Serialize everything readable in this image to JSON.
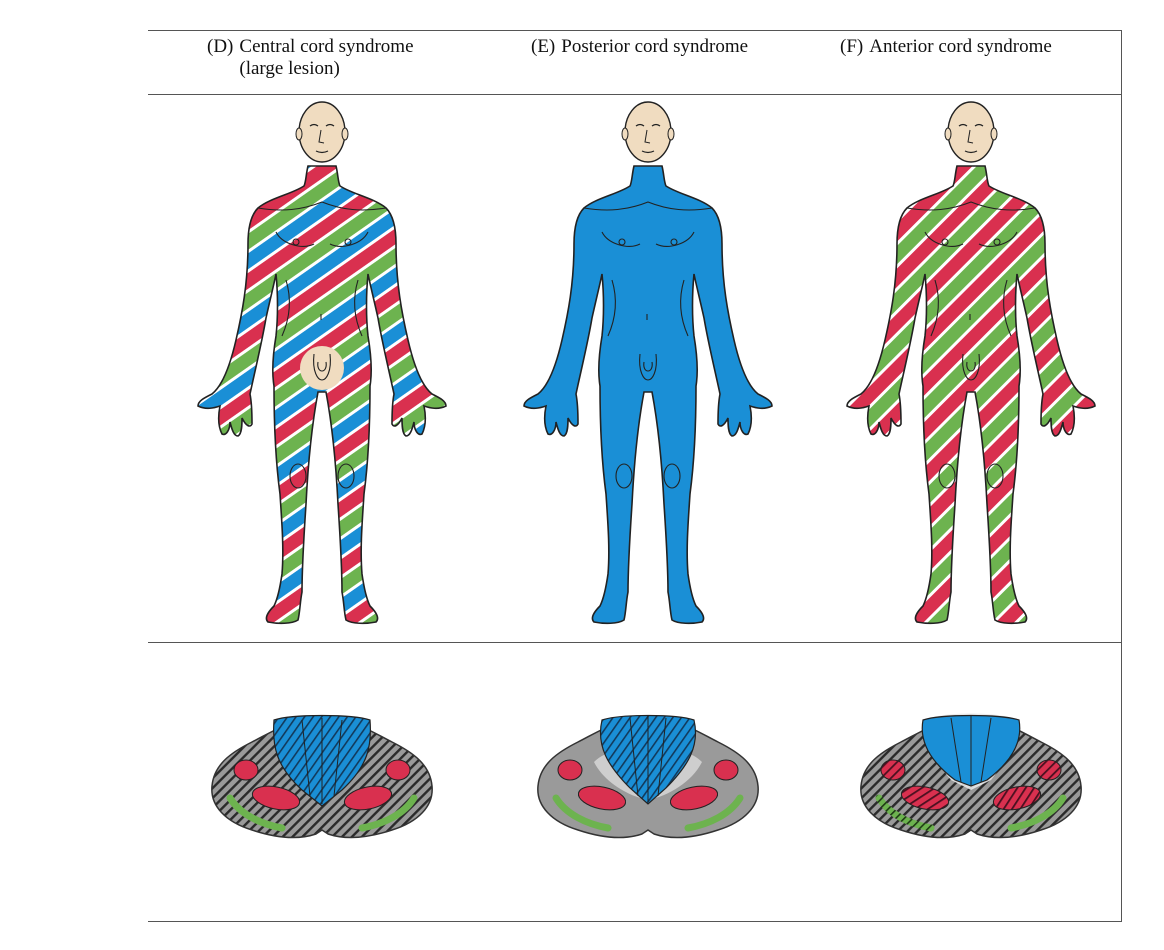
{
  "panels": [
    {
      "tag": "(D)",
      "title_line1": "Central cord syndrome",
      "title_line2": "(large lesion)"
    },
    {
      "tag": "(E)",
      "title_line1": "Posterior cord syndrome",
      "title_line2": ""
    },
    {
      "tag": "(F)",
      "title_line1": "Anterior cord syndrome",
      "title_line2": ""
    }
  ],
  "colors": {
    "blue": "#1a8fd6",
    "red": "#d9304f",
    "green": "#6db34f",
    "skin": "#f0dcc0",
    "gray_matter": "#8a8a8a"
  }
}
